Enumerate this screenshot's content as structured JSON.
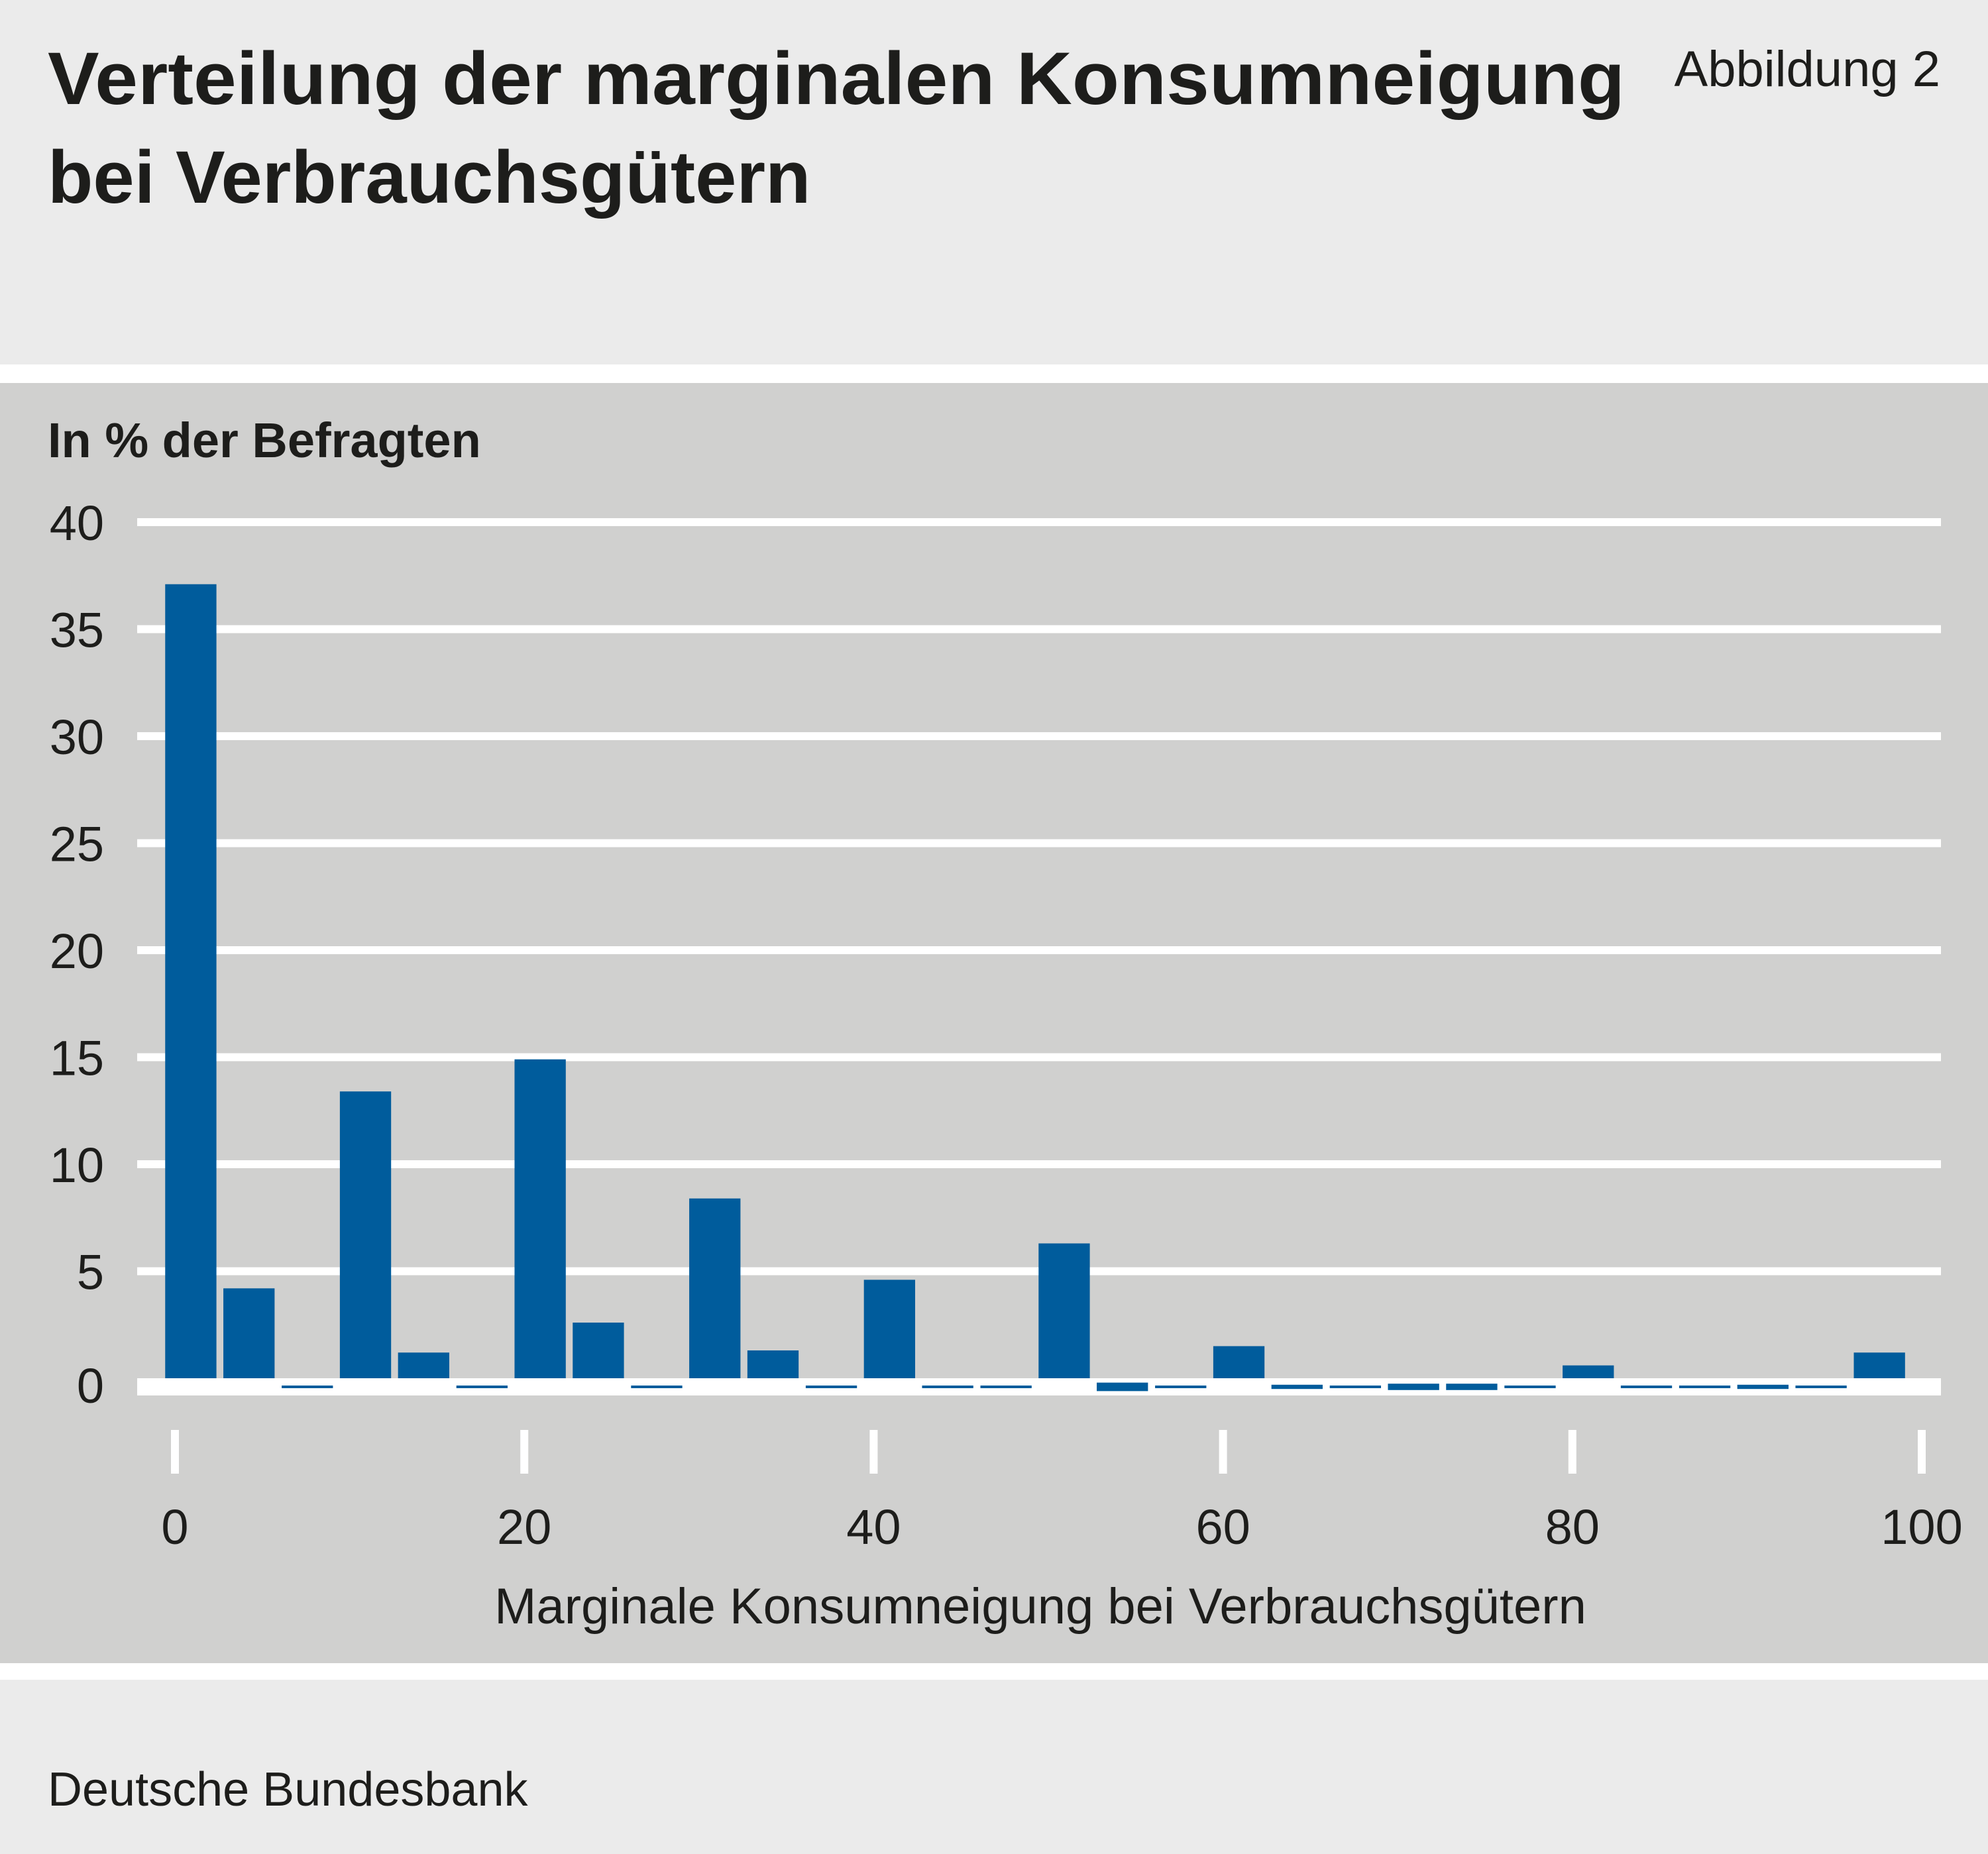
{
  "header": {
    "title_line1": "Verteilung der marginalen Konsumneigung",
    "title_line2": "bei Verbrauchsgütern",
    "figure_label": "Abbildung 2"
  },
  "footer": {
    "source": "Deutsche Bundesbank"
  },
  "colors": {
    "bar": "#005c9c",
    "panel": "#d0d0cf",
    "header_bg": "#ebebeb",
    "grid": "#ffffff"
  },
  "chart_data": {
    "type": "bar",
    "title": "Verteilung der marginalen Konsumneigung bei Verbrauchsgütern",
    "ylabel": "In % der Befragten",
    "xlabel": "Marginale Konsumneigung bei Verbrauchsgütern",
    "ylim": [
      0,
      40
    ],
    "yticks": [
      0,
      5,
      10,
      15,
      20,
      25,
      30,
      35,
      40
    ],
    "xlim": [
      0,
      100
    ],
    "xticks": [
      0,
      20,
      40,
      60,
      80,
      100
    ],
    "grid": true,
    "bin_width": 3.33,
    "bin_starts": [
      0,
      3.33,
      6.67,
      10,
      13.33,
      16.67,
      20,
      23.33,
      26.67,
      30,
      33.33,
      36.67,
      40,
      43.33,
      46.67,
      50,
      53.33,
      56.67,
      60,
      63.33,
      66.67,
      70,
      73.33,
      76.67,
      80,
      83.33,
      86.67,
      90,
      93.33,
      96.67
    ],
    "values": [
      37.1,
      4.2,
      0.1,
      13.4,
      1.2,
      0.1,
      14.9,
      2.6,
      0.1,
      8.4,
      1.3,
      0.1,
      4.6,
      0.1,
      0.1,
      6.3,
      0.4,
      0.1,
      1.5,
      0.2,
      0.1,
      0.3,
      0.3,
      0.1,
      0.6,
      0.1,
      0.1,
      0.2,
      0.1,
      1.2
    ]
  }
}
